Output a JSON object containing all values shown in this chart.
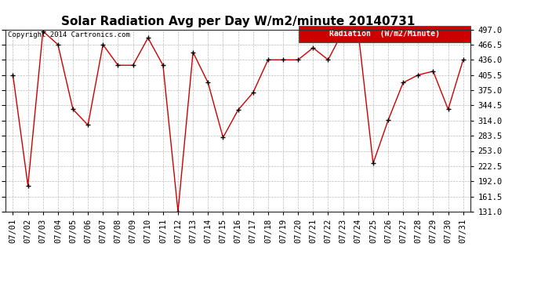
{
  "title": "Solar Radiation Avg per Day W/m2/minute 20140731",
  "copyright": "Copyright 2014 Cartronics.com",
  "legend_label": "Radiation  (W/m2/Minute)",
  "dates": [
    "07/01",
    "07/02",
    "07/03",
    "07/04",
    "07/05",
    "07/06",
    "07/07",
    "07/08",
    "07/09",
    "07/10",
    "07/11",
    "07/12",
    "07/13",
    "07/14",
    "07/15",
    "07/16",
    "07/17",
    "07/18",
    "07/19",
    "07/20",
    "07/21",
    "07/22",
    "07/23",
    "07/24",
    "07/25",
    "07/26",
    "07/27",
    "07/28",
    "07/29",
    "07/30",
    "07/31"
  ],
  "values": [
    405.5,
    183.5,
    493.5,
    466.5,
    336.5,
    305.0,
    466.5,
    425.0,
    425.0,
    480.0,
    425.0,
    131.0,
    451.0,
    390.0,
    280.0,
    335.0,
    370.0,
    436.0,
    436.0,
    436.0,
    460.0,
    436.0,
    493.5,
    493.5,
    228.0,
    314.5,
    390.0,
    405.5,
    413.0,
    336.5,
    436.0
  ],
  "ylim": [
    131.0,
    497.0
  ],
  "yticks": [
    131.0,
    161.5,
    192.0,
    222.5,
    253.0,
    283.5,
    314.0,
    344.5,
    375.0,
    405.5,
    436.0,
    466.5,
    497.0
  ],
  "line_color": "#cc0000",
  "marker_color": "#000000",
  "bg_color": "#ffffff",
  "grid_color": "#bbbbbb",
  "title_fontsize": 11,
  "tick_fontsize": 7.5,
  "legend_bg": "#cc0000",
  "legend_text_color": "#ffffff"
}
